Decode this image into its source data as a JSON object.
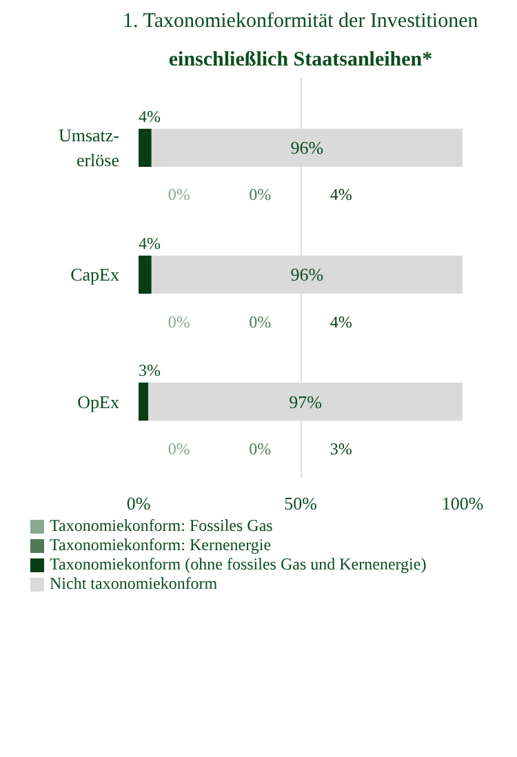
{
  "chart_data": {
    "type": "bar",
    "orientation": "horizontal",
    "stacked": true,
    "title": "1. Taxonomiekonformität der Investitionen",
    "subtitle": "einschließlich Staatsanleihen*",
    "categories": [
      "Umsatz-\nerlöse",
      "CapEx",
      "OpEx"
    ],
    "series": [
      {
        "name": "Taxonomiekonform: Fossiles Gas",
        "color": "#8aa88f",
        "values": [
          0,
          0,
          0
        ]
      },
      {
        "name": "Taxonomiekonform: Kernenergie",
        "color": "#4f7a58",
        "values": [
          0,
          0,
          0
        ]
      },
      {
        "name": "Taxonomiekonform (ohne fossiles Gas und Kernenergie)",
        "color": "#0a3d14",
        "values": [
          4,
          4,
          3
        ],
        "value_labels": [
          "4%",
          "4%",
          "3%"
        ]
      },
      {
        "name": "Nicht taxonomiekonform",
        "color": "#dadada",
        "values": [
          96,
          96,
          97
        ],
        "value_labels": [
          "96%",
          "96%",
          "97%"
        ]
      }
    ],
    "annotations": [
      "0%",
      "0%",
      "4%",
      "0%",
      "0%",
      "4%",
      "0%",
      "0%",
      "3%"
    ],
    "xlim": [
      0,
      100
    ],
    "xticks": [
      {
        "value": 0,
        "label": "0%"
      },
      {
        "value": 50,
        "label": "50%"
      },
      {
        "value": 100,
        "label": "100%"
      }
    ],
    "grid": "x",
    "legend": "bottom"
  }
}
